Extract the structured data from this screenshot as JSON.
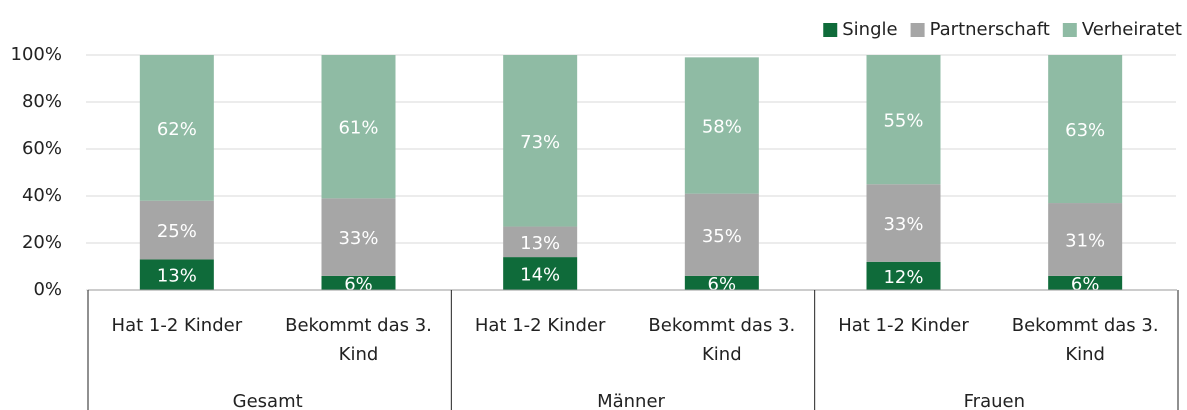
{
  "chart_data": {
    "type": "stacked_bar",
    "groups": [
      "Gesamt",
      "Männer",
      "Frauen"
    ],
    "categories": [
      "Hat 1-2 Kinder",
      "Bekommt das 3. Kind",
      "Hat 1-2 Kinder",
      "Bekommt das 3. Kind",
      "Hat 1-2 Kinder",
      "Bekommt das 3. Kind"
    ],
    "series": [
      {
        "name": "Single",
        "color": "#0f6b3a",
        "values": [
          13,
          6,
          14,
          6,
          12,
          6
        ],
        "value_labels": [
          "13%",
          "6%",
          "14%",
          "6%",
          "12%",
          "6%"
        ]
      },
      {
        "name": "Partnerschaft",
        "color": "#a6a6a6",
        "values": [
          25,
          33,
          13,
          35,
          33,
          31
        ],
        "value_labels": [
          "25%",
          "33%",
          "13%",
          "35%",
          "33%",
          "31%"
        ]
      },
      {
        "name": "Verheiratet",
        "color": "#8fbba4",
        "values": [
          62,
          61,
          73,
          58,
          55,
          63
        ],
        "value_labels": [
          "62%",
          "61%",
          "73%",
          "58%",
          "55%",
          "63%"
        ]
      }
    ],
    "ylim": [
      0,
      100
    ],
    "yticks": [
      {
        "value": 0,
        "label": "0%"
      },
      {
        "value": 20,
        "label": "20%"
      },
      {
        "value": 40,
        "label": "40%"
      },
      {
        "value": 60,
        "label": "60%"
      },
      {
        "value": 80,
        "label": "80%"
      },
      {
        "value": 100,
        "label": "100%"
      }
    ],
    "grid": true,
    "legend": "top-right"
  }
}
